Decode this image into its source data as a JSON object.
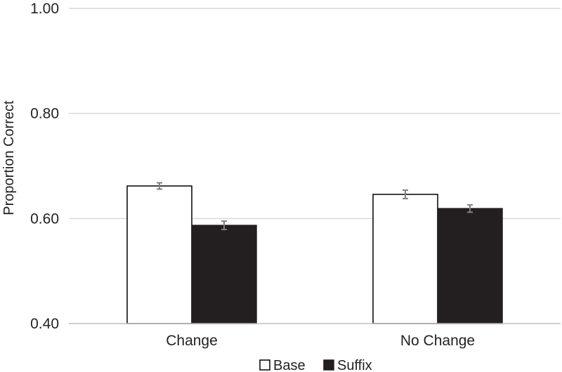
{
  "chart_data": {
    "type": "bar",
    "title": "",
    "xlabel": "",
    "ylabel": "Proportion Correct",
    "ylim": [
      0.4,
      1.0
    ],
    "yticks": [
      "0.40",
      "0.60",
      "0.80",
      "1.00"
    ],
    "ytick_values": [
      0.4,
      0.6,
      0.8,
      1.0
    ],
    "grid": "horizontal",
    "legend_position": "bottom",
    "categories": [
      "Change",
      "No Change"
    ],
    "series": [
      {
        "name": "Base",
        "fill": "#ffffff",
        "stroke": "#000000",
        "values": [
          0.662,
          0.646
        ],
        "errors": [
          0.006,
          0.008
        ]
      },
      {
        "name": "Suffix",
        "fill": "#231f20",
        "stroke": "#231f20",
        "values": [
          0.587,
          0.619
        ],
        "errors": [
          0.008,
          0.007
        ]
      }
    ],
    "colors": {
      "gridline": "#d9d9d9",
      "axis": "#bfbfbf",
      "error_bar": "#808080"
    }
  }
}
